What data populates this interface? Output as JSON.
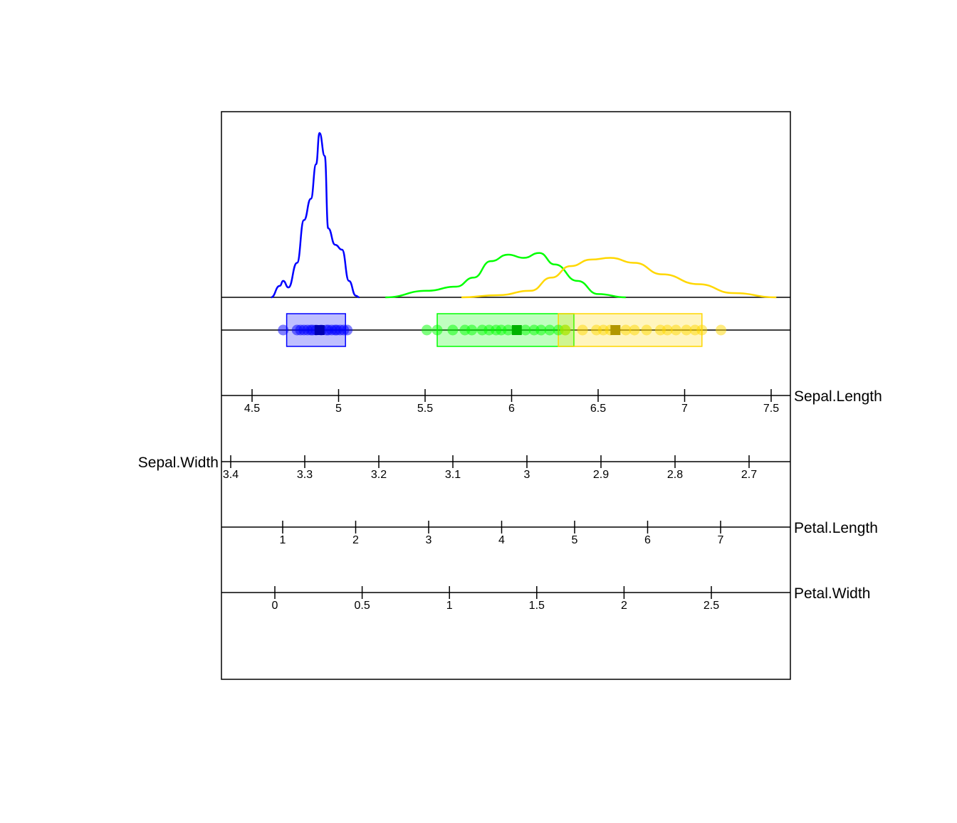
{
  "chart_data": {
    "type": "scatter",
    "title": "",
    "projection_axis": "Sepal.Length",
    "groups": [
      {
        "color": "#0000ff",
        "density": {
          "x": [
            4.61,
            4.66,
            4.68,
            4.71,
            4.76,
            4.8,
            4.84,
            4.87,
            4.89,
            4.92,
            4.94,
            4.98,
            5.02,
            5.06,
            5.1,
            5.12
          ],
          "y": [
            0,
            0.07,
            0.1,
            0.06,
            0.21,
            0.47,
            0.6,
            0.81,
            1.0,
            0.86,
            0.42,
            0.32,
            0.29,
            0.1,
            0.01,
            0
          ]
        },
        "points": [
          4.68,
          4.76,
          4.78,
          4.8,
          4.82,
          4.84,
          4.85,
          4.87,
          4.9,
          4.93,
          4.94,
          4.96,
          4.98,
          4.99,
          5.01,
          5.03,
          5.05
        ],
        "mean": 4.89,
        "box": [
          4.7,
          5.04
        ]
      },
      {
        "color": "#00ff00",
        "density": {
          "x": [
            5.27,
            5.51,
            5.68,
            5.78,
            5.88,
            5.98,
            6.07,
            6.16,
            6.25,
            6.38,
            6.5,
            6.66
          ],
          "y": [
            0,
            0.04,
            0.065,
            0.12,
            0.22,
            0.26,
            0.24,
            0.27,
            0.2,
            0.1,
            0.02,
            0
          ]
        },
        "points": [
          5.51,
          5.57,
          5.66,
          5.73,
          5.77,
          5.83,
          5.87,
          5.91,
          5.94,
          5.98,
          6.08,
          6.13,
          6.17,
          6.22,
          6.27,
          6.31
        ],
        "mean": 6.03,
        "box": [
          5.57,
          6.36
        ]
      },
      {
        "color": "#ffd700",
        "density": {
          "x": [
            5.71,
            5.92,
            6.11,
            6.23,
            6.34,
            6.46,
            6.57,
            6.71,
            6.87,
            7.08,
            7.28,
            7.53
          ],
          "y": [
            0,
            0.013,
            0.04,
            0.12,
            0.19,
            0.23,
            0.24,
            0.21,
            0.14,
            0.08,
            0.026,
            0
          ]
        },
        "points": [
          6.31,
          6.41,
          6.49,
          6.53,
          6.57,
          6.66,
          6.71,
          6.78,
          6.86,
          6.9,
          6.95,
          7.01,
          7.06,
          7.1,
          7.21
        ],
        "mean": 6.6,
        "box": [
          6.27,
          7.1
        ]
      }
    ],
    "axes": [
      {
        "label": "Sepal.Length",
        "label_side": "right",
        "ticks": [
          "4.5",
          "5",
          "5.5",
          "6",
          "6.5",
          "7",
          "7.5"
        ]
      },
      {
        "label": "Sepal.Width",
        "label_side": "left",
        "ticks": [
          "3.4",
          "3.3",
          "3.2",
          "3.1",
          "3",
          "2.9",
          "2.8",
          "2.7"
        ]
      },
      {
        "label": "Petal.Length",
        "label_side": "right",
        "ticks": [
          "1",
          "2",
          "3",
          "4",
          "5",
          "6",
          "7"
        ]
      },
      {
        "label": "Petal.Width",
        "label_side": "right",
        "ticks": [
          "0",
          "0.5",
          "1",
          "1.5",
          "2",
          "2.5"
        ]
      }
    ]
  }
}
